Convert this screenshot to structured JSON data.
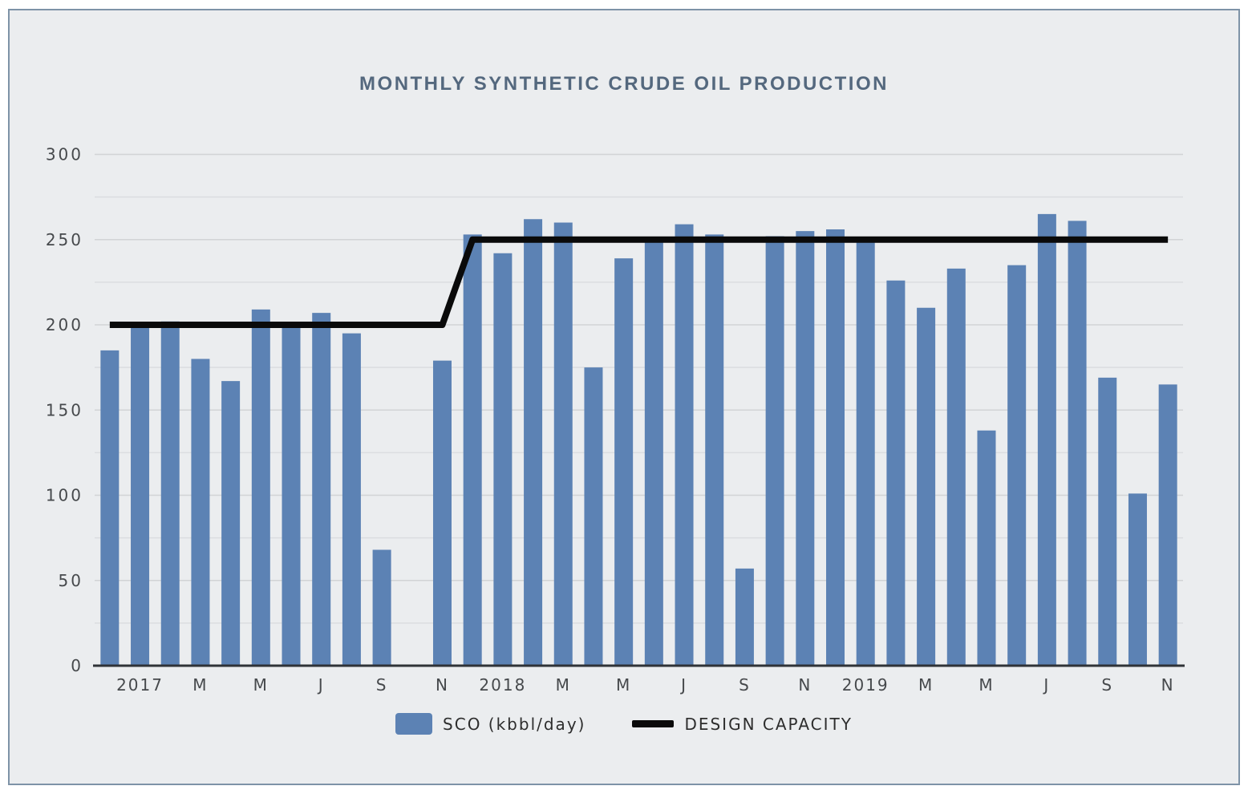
{
  "title": "MONTHLY SYNTHETIC CRUDE OIL PRODUCTION",
  "legend": {
    "sco_label": "SCO (kbbl/day)",
    "capacity_label": "DESIGN CAPACITY"
  },
  "colors": {
    "bar": "#5c82b4",
    "capacity_line": "#0a0a0a",
    "panel_border": "#7e93a7",
    "panel_bg": "#ebedef",
    "grid_major": "#d2d4d6",
    "grid_minor": "#dbdde0",
    "axis_line": "#2f3337",
    "tick_label": "#46494c",
    "title": "#54687e",
    "legend_text": "#2d2d2d"
  },
  "chart_data": {
    "type": "bar",
    "title": "MONTHLY SYNTHETIC CRUDE OIL PRODUCTION",
    "xlabel": "",
    "ylabel": "",
    "ylim": [
      0,
      300
    ],
    "y_tick_step": 50,
    "y_grid_step": 25,
    "grid": true,
    "legend_position": "bottom",
    "categories": [
      "Dec 2016",
      "Jan 2017",
      "Feb 2017",
      "Mar 2017",
      "Apr 2017",
      "May 2017",
      "Jun 2017",
      "Jul 2017",
      "Aug 2017",
      "Sep 2017",
      "Oct 2017",
      "Nov 2017",
      "Dec 2017",
      "Jan 2018",
      "Feb 2018",
      "Mar 2018",
      "Apr 2018",
      "May 2018",
      "Jun 2018",
      "Jul 2018",
      "Aug 2018",
      "Sep 2018",
      "Oct 2018",
      "Nov 2018",
      "Dec 2018",
      "Jan 2019",
      "Feb 2019",
      "Mar 2019",
      "Apr 2019",
      "May 2019",
      "Jun 2019",
      "Jul 2019",
      "Aug 2019",
      "Sep 2019",
      "Oct 2019",
      "Nov 2019"
    ],
    "x_tick_labels": [
      "",
      "2017",
      "",
      "M",
      "",
      "M",
      "",
      "J",
      "",
      "S",
      "",
      "N",
      "",
      "2018",
      "",
      "M",
      "",
      "M",
      "",
      "J",
      "",
      "S",
      "",
      "N",
      "",
      "2019",
      "",
      "M",
      "",
      "M",
      "",
      "J",
      "",
      "S",
      "",
      "N"
    ],
    "series": [
      {
        "name": "SCO (kbbl/day)",
        "type": "bar",
        "values": [
          185,
          199,
          202,
          180,
          167,
          209,
          199,
          207,
          195,
          68,
          null,
          179,
          253,
          242,
          262,
          260,
          175,
          239,
          250,
          259,
          253,
          57,
          252,
          255,
          256,
          249,
          226,
          210,
          233,
          138,
          235,
          265,
          261,
          169,
          101,
          165
        ]
      },
      {
        "name": "DESIGN CAPACITY",
        "type": "line",
        "values": [
          200,
          200,
          200,
          200,
          200,
          200,
          200,
          200,
          200,
          200,
          200,
          200,
          250,
          250,
          250,
          250,
          250,
          250,
          250,
          250,
          250,
          250,
          250,
          250,
          250,
          250,
          250,
          250,
          250,
          250,
          250,
          250,
          250,
          250,
          250,
          250
        ]
      }
    ]
  }
}
